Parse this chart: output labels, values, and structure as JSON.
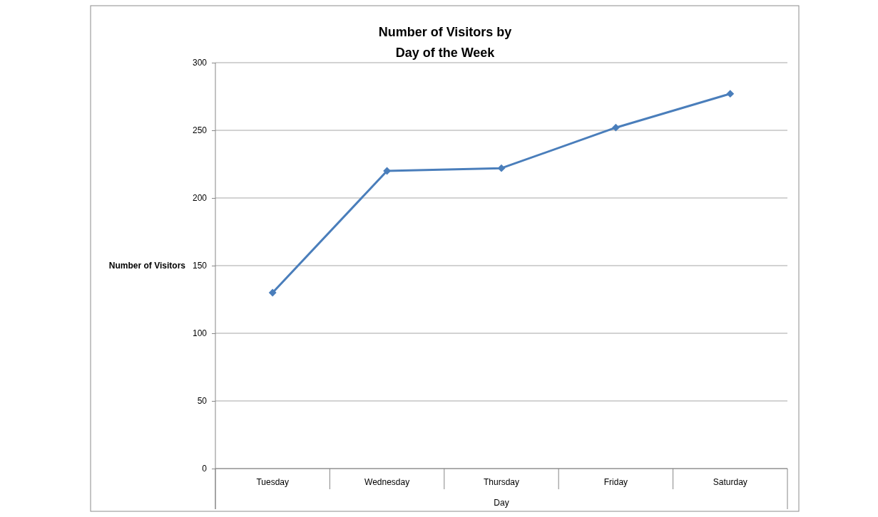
{
  "chart_data": {
    "type": "line",
    "title": "Number of Visitors by Day of the Week",
    "xlabel": "Day",
    "ylabel": "Number of Visitors",
    "categories": [
      "Tuesday",
      "Wednesday",
      "Thursday",
      "Friday",
      "Saturday"
    ],
    "series": [
      {
        "color": "#4a7ebb",
        "values": [
          130,
          220,
          222,
          252,
          277
        ]
      }
    ],
    "ylim": [
      0,
      300
    ],
    "yticks": [
      0,
      50,
      100,
      150,
      200,
      250,
      300
    ],
    "grid": "y",
    "legend": false,
    "marker": "diamond"
  }
}
